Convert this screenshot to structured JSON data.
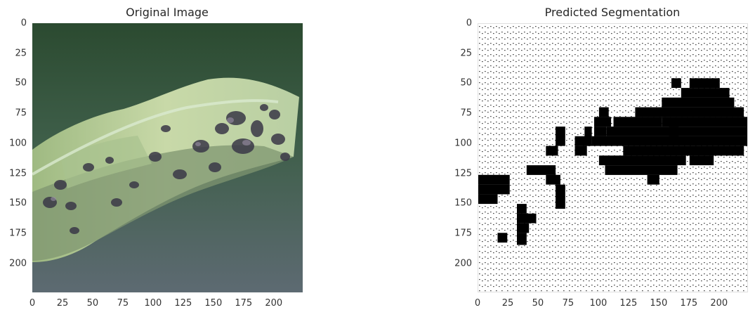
{
  "panels": {
    "left": {
      "title": "Original Image"
    },
    "right": {
      "title": "Predicted Segmentation"
    }
  },
  "axes": {
    "x_ticks": [
      "0",
      "25",
      "50",
      "75",
      "100",
      "125",
      "150",
      "175",
      "200"
    ],
    "y_ticks": [
      "0",
      "25",
      "50",
      "75",
      "100",
      "125",
      "150",
      "175",
      "200"
    ]
  },
  "colors": {
    "leaf_light": "#c8d9a8",
    "leaf_dark": "#6b7f58",
    "lesion": "#3c3a45",
    "background_top": "#2f4a33",
    "background_bottom": "#5a6a70",
    "mask_fg": "#000000",
    "mask_bg": "#ffffff"
  }
}
